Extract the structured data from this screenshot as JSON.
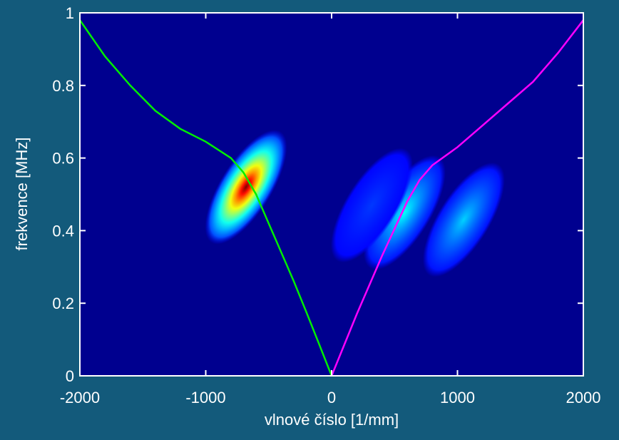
{
  "chart_data": {
    "type": "heatmap-lines",
    "xlabel": "vlnové číslo [1/mm]",
    "ylabel": "frekvence [MHz]",
    "xlim": [
      -2000,
      2000
    ],
    "ylim": [
      0,
      1
    ],
    "xticks": [
      -2000,
      -1000,
      0,
      1000,
      2000
    ],
    "yticks": [
      0,
      0.2,
      0.4,
      0.6,
      0.8,
      1
    ],
    "background_color": "#00008f",
    "blobs": [
      {
        "x": -680,
        "y": 0.52,
        "value": 1
      },
      {
        "x": 580,
        "y": 0.45,
        "value": 0.38
      },
      {
        "x": 1050,
        "y": 0.43,
        "value": 0.33
      },
      {
        "x": 320,
        "y": 0.47,
        "value": 0.18
      }
    ],
    "series": [
      {
        "color": "#00ee00",
        "x": [
          -2000,
          -1800,
          -1600,
          -1400,
          -1200,
          -1000,
          -800,
          -700,
          -600,
          -500,
          -400,
          -300,
          -200,
          -100,
          0
        ],
        "values": [
          0.98,
          0.88,
          0.8,
          0.73,
          0.68,
          0.645,
          0.6,
          0.56,
          0.5,
          0.42,
          0.34,
          0.26,
          0.175,
          0.088,
          0
        ]
      },
      {
        "color": "#ff00ff",
        "x": [
          0,
          200,
          400,
          600,
          700,
          800,
          1000,
          1200,
          1400,
          1600,
          1800,
          2000
        ],
        "values": [
          0,
          0.17,
          0.33,
          0.48,
          0.54,
          0.58,
          0.63,
          0.69,
          0.75,
          0.81,
          0.89,
          0.98
        ]
      }
    ]
  }
}
